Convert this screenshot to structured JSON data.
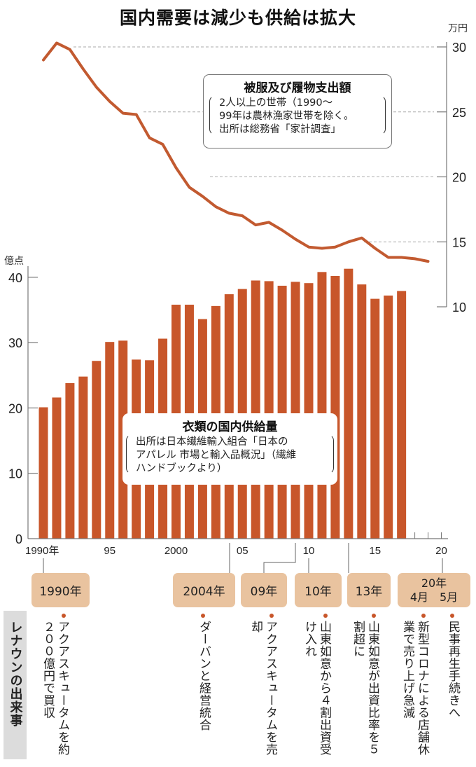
{
  "title": "国内需要は減少も供給は拡大",
  "colors": {
    "bar": "#c8562a",
    "line": "#c25a30",
    "event_box": "#e9c39f",
    "side_label_bg": "#dcdcdc",
    "axis": "#777777",
    "grid": "#aaaaaa"
  },
  "chart_data": [
    {
      "type": "line",
      "name": "被服及び履物支出額",
      "title": "被服及び履物支出額",
      "note": [
        "2人以上の世帯（1990～",
        "99年は農林漁家世帯を除く。",
        "出所は総務省「家計調査」"
      ],
      "unit": "万円",
      "axis_side": "right",
      "ylim": [
        10,
        30
      ],
      "yticks": [
        10,
        15,
        20,
        25,
        30
      ],
      "grid": "dashed at 15, 20, 25, 30",
      "x": [
        1990,
        1991,
        1992,
        1993,
        1994,
        1995,
        1996,
        1997,
        1998,
        1999,
        2000,
        2001,
        2002,
        2003,
        2004,
        2005,
        2006,
        2007,
        2008,
        2009,
        2010,
        2011,
        2012,
        2013,
        2014,
        2015,
        2016,
        2017,
        2018,
        2019
      ],
      "values": [
        29.0,
        30.3,
        29.8,
        28.3,
        26.9,
        25.8,
        24.9,
        24.8,
        23.0,
        22.5,
        20.7,
        19.2,
        18.5,
        17.7,
        17.2,
        17.0,
        16.3,
        16.5,
        15.9,
        15.2,
        14.6,
        14.5,
        14.6,
        15.0,
        15.3,
        14.5,
        13.8,
        13.8,
        13.7,
        13.5
      ]
    },
    {
      "type": "bar",
      "name": "衣類の国内供給量",
      "title": "衣類の国内供給量",
      "note": [
        "出所は日本繊維輸入組合「日本の",
        "アパレル 市場と輸入品概況」（繊維",
        "ハンドブックより）"
      ],
      "unit": "億点",
      "axis_side": "left",
      "ylim": [
        0,
        40
      ],
      "yticks": [
        0,
        10,
        20,
        30,
        40
      ],
      "x": [
        1990,
        1991,
        1992,
        1993,
        1994,
        1995,
        1996,
        1997,
        1998,
        1999,
        2000,
        2001,
        2002,
        2003,
        2004,
        2005,
        2006,
        2007,
        2008,
        2009,
        2010,
        2011,
        2012,
        2013,
        2014,
        2015,
        2016,
        2017
      ],
      "values": [
        20.1,
        21.6,
        23.8,
        24.8,
        27.2,
        30.1,
        30.3,
        27.4,
        27.3,
        30.6,
        35.8,
        35.8,
        33.6,
        35.6,
        37.4,
        38.2,
        39.5,
        39.4,
        38.7,
        39.3,
        39.1,
        40.8,
        40.2,
        41.3,
        38.9,
        36.7,
        37.2,
        37.9
      ]
    }
  ],
  "xaxis": {
    "range": [
      1990,
      2020
    ],
    "tick_labels": [
      {
        "year": 1990,
        "label": "1990年"
      },
      {
        "year": 1995,
        "label": "95"
      },
      {
        "year": 2000,
        "label": "2000"
      },
      {
        "year": 2005,
        "label": "05"
      },
      {
        "year": 2010,
        "label": "10"
      },
      {
        "year": 2015,
        "label": "15"
      },
      {
        "year": 2020,
        "label": "20"
      }
    ]
  },
  "events_section": {
    "label": "レナウンの出来事",
    "boxes": [
      {
        "label": "1990年"
      },
      {
        "label": "2004年"
      },
      {
        "label": "09年"
      },
      {
        "label": "10年"
      },
      {
        "label": "13年"
      },
      {
        "label": "20年",
        "sub": "4月　5月"
      }
    ],
    "events": [
      {
        "text": "アクアスキュータムを約２００億円で買収"
      },
      {
        "text": "ダーバンと経営統合"
      },
      {
        "text": "アクアスキュータムを売却"
      },
      {
        "text": "山東如意から４割出資受け入れ"
      },
      {
        "text": "山東如意が出資比率を５割超に"
      },
      {
        "text": "新型コロナによる店舗休業で売り上げ急減"
      },
      {
        "text": "民事再生手続きへ"
      }
    ]
  }
}
